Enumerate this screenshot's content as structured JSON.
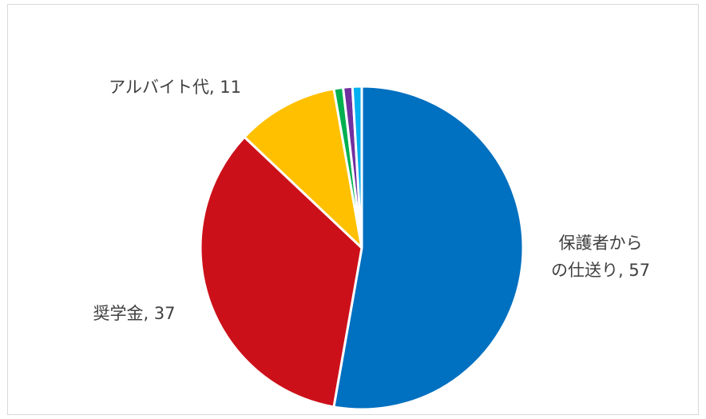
{
  "chart_data": {
    "type": "pie",
    "title": "",
    "start_angle_deg": 0,
    "direction": "clockwise",
    "slice_border_color": "#ffffff",
    "slices": [
      {
        "label": "保護者からの仕送り",
        "value": 57,
        "color": "#0070C0",
        "data_label": "保護者から\nの仕送り, 57"
      },
      {
        "label": "奨学金",
        "value": 37,
        "color": "#CC1019",
        "data_label": "奨学金, 37"
      },
      {
        "label": "アルバイト代",
        "value": 11,
        "color": "#FFC000",
        "data_label": "アルバイト代, 11"
      },
      {
        "label": "",
        "value": 1,
        "color": "#00B050",
        "data_label": ""
      },
      {
        "label": "",
        "value": 1,
        "color": "#7030A0",
        "data_label": ""
      },
      {
        "label": "",
        "value": 1,
        "color": "#00B0F0",
        "data_label": ""
      }
    ]
  }
}
